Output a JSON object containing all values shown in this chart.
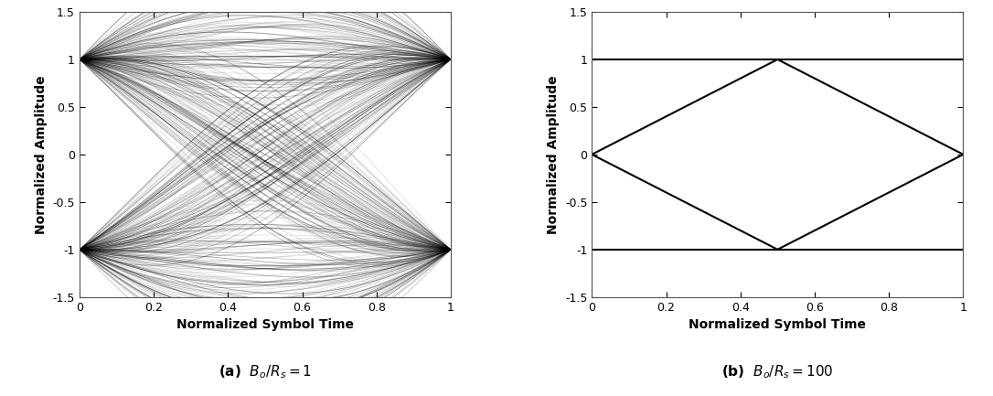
{
  "xlim": [
    0,
    1
  ],
  "ylim": [
    -1.5,
    1.5
  ],
  "yticks": [
    -1.5,
    -1.0,
    -0.5,
    0.0,
    0.5,
    1.0,
    1.5
  ],
  "xticks": [
    0,
    0.2,
    0.4,
    0.6,
    0.8,
    1.0
  ],
  "xtick_labels": [
    "0",
    "0.2",
    "0.4",
    "0.6",
    "0.8",
    "1"
  ],
  "ytick_labels": [
    "-1.5",
    "-1",
    "-0.5",
    "0",
    "0.5",
    "1",
    "1.5"
  ],
  "xlabel": "Normalized Symbol Time",
  "ylabel": "Normalized Amplitude",
  "caption_a": "(a)",
  "caption_b": "(b)",
  "label_a": "$B_o/R_s = 1$",
  "label_b": "$B_o/R_s = 100$",
  "line_color": "#000000",
  "bg_color": "#ffffff",
  "trace_color": "#000000",
  "fig_bg": "#ffffff",
  "n_traces": 600,
  "seed": 42,
  "trace_alpha": 0.15,
  "trace_lw": 0.5
}
